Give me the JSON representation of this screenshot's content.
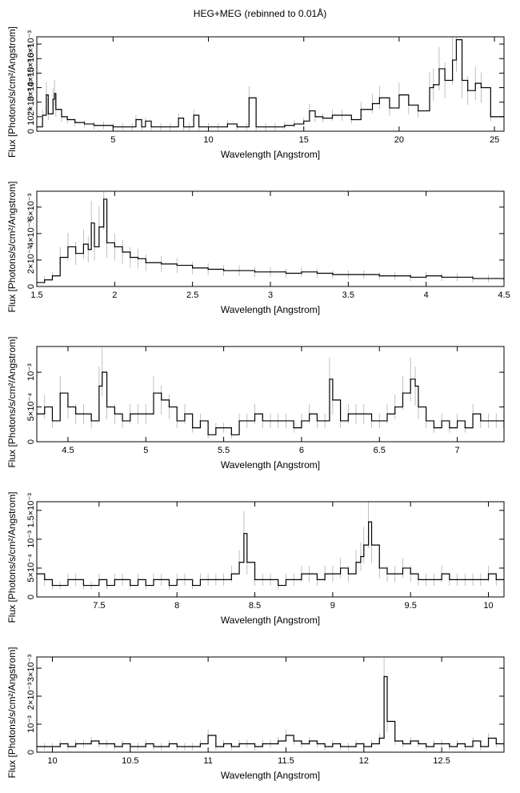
{
  "title": "HEG+MEG (rebinned to 0.01Å)",
  "colors": {
    "line": "#000000",
    "error_bar": "#b0b0b0",
    "frame": "#000000"
  },
  "chart_data": [
    {
      "type": "line",
      "xlabel": "Wavelength [Angstrom]",
      "ylabel": "Flux [Photons/s/cm²/Angstrom]",
      "xlim": [
        1.0,
        25.5
      ],
      "ylim": [
        0,
        0.0065
      ],
      "xticks": [
        5,
        10,
        15,
        20,
        25
      ],
      "xtick_labels": [
        "5",
        "10",
        "15",
        "20",
        "25"
      ],
      "yticks": [
        0,
        0.001,
        0.002,
        0.003,
        0.004,
        0.005,
        0.006
      ],
      "ytick_labels": [
        "0",
        "10⁻³",
        "2×10⁻³",
        "3×10⁻³",
        "4×10⁻³",
        "5×10⁻³",
        "6×10⁻³"
      ],
      "series": [
        {
          "x": [
            1.0,
            1.3,
            1.5,
            1.6,
            1.85,
            1.93,
            2.0,
            2.3,
            2.6,
            3.0,
            3.5,
            4.0,
            4.5,
            5.0,
            5.5,
            6.0,
            6.2,
            6.5,
            6.7,
            7.0,
            7.5,
            8.0,
            8.43,
            8.7,
            9.0,
            9.23,
            9.5,
            10.0,
            10.5,
            11.0,
            11.5,
            12.0,
            12.13,
            12.5,
            13.0,
            13.5,
            14.0,
            14.5,
            15.0,
            15.3,
            15.6,
            16.0,
            16.5,
            17.0,
            17.5,
            18.0,
            18.6,
            18.97,
            19.5,
            20.0,
            20.5,
            21.0,
            21.6,
            21.8,
            22.1,
            22.4,
            22.8,
            23.0,
            23.3,
            23.6,
            24.0,
            24.3,
            24.8,
            25.5
          ],
          "y": [
            0.0003,
            0.0011,
            0.0025,
            0.0012,
            0.0022,
            0.0026,
            0.0015,
            0.001,
            0.0008,
            0.0006,
            0.0005,
            0.0004,
            0.0004,
            0.0003,
            0.0003,
            0.0003,
            0.0008,
            0.0003,
            0.0007,
            0.0003,
            0.0003,
            0.0003,
            0.0009,
            0.0003,
            0.0003,
            0.0011,
            0.0003,
            0.0003,
            0.0003,
            0.0005,
            0.0003,
            0.0003,
            0.0023,
            0.0003,
            0.0003,
            0.0003,
            0.0004,
            0.0005,
            0.0007,
            0.0014,
            0.001,
            0.0009,
            0.0011,
            0.0011,
            0.0008,
            0.0015,
            0.0019,
            0.0023,
            0.0016,
            0.0025,
            0.0018,
            0.0014,
            0.003,
            0.0032,
            0.0043,
            0.0035,
            0.0049,
            0.0063,
            0.0035,
            0.0028,
            0.0033,
            0.003,
            0.001,
            0.001
          ]
        }
      ]
    },
    {
      "type": "line",
      "xlabel": "Wavelength [Angstrom]",
      "ylabel": "Flux [Photons/s/cm²/Angstrom]",
      "xlim": [
        1.5,
        4.5
      ],
      "ylim": [
        0,
        0.0072
      ],
      "xticks": [
        1.5,
        2,
        2.5,
        3,
        3.5,
        4,
        4.5
      ],
      "xtick_labels": [
        "1.5",
        "2",
        "2.5",
        "3",
        "3.5",
        "4",
        "4.5"
      ],
      "yticks": [
        0,
        0.002,
        0.004,
        0.006
      ],
      "ytick_labels": [
        "0",
        "2×10⁻³",
        "4×10⁻³",
        "6×10⁻³"
      ],
      "series": [
        {
          "x": [
            1.5,
            1.55,
            1.6,
            1.65,
            1.7,
            1.75,
            1.8,
            1.83,
            1.85,
            1.87,
            1.9,
            1.93,
            1.95,
            2.0,
            2.05,
            2.1,
            2.15,
            2.2,
            2.3,
            2.4,
            2.5,
            2.6,
            2.7,
            2.8,
            2.9,
            3.0,
            3.1,
            3.2,
            3.3,
            3.4,
            3.5,
            3.6,
            3.7,
            3.8,
            3.9,
            4.0,
            4.1,
            4.2,
            4.3,
            4.4,
            4.5
          ],
          "y": [
            0.0003,
            0.0005,
            0.0008,
            0.0022,
            0.003,
            0.0025,
            0.0032,
            0.0028,
            0.0048,
            0.003,
            0.0045,
            0.0066,
            0.0033,
            0.003,
            0.0026,
            0.0022,
            0.0021,
            0.0018,
            0.0017,
            0.0016,
            0.0014,
            0.0013,
            0.0012,
            0.0012,
            0.0011,
            0.0011,
            0.001,
            0.0011,
            0.001,
            0.0009,
            0.0009,
            0.0009,
            0.0008,
            0.0008,
            0.0007,
            0.0008,
            0.0007,
            0.0007,
            0.0006,
            0.0006,
            0.0005
          ]
        }
      ]
    },
    {
      "type": "line",
      "xlabel": "Wavelength [Angstrom]",
      "ylabel": "Flux [Photons/s/cm²/Angstrom]",
      "xlim": [
        4.3,
        7.3
      ],
      "ylim": [
        0,
        0.00137
      ],
      "xticks": [
        4.5,
        5,
        5.5,
        6,
        6.5,
        7
      ],
      "xtick_labels": [
        "4.5",
        "5",
        "5.5",
        "6",
        "6.5",
        "7"
      ],
      "yticks": [
        0,
        0.0005,
        0.001
      ],
      "ytick_labels": [
        "0",
        "5×10⁻⁴",
        "10⁻³"
      ],
      "series": [
        {
          "x": [
            4.3,
            4.35,
            4.4,
            4.45,
            4.5,
            4.55,
            4.6,
            4.65,
            4.7,
            4.72,
            4.75,
            4.8,
            4.85,
            4.9,
            4.95,
            5.0,
            5.05,
            5.1,
            5.15,
            5.2,
            5.25,
            5.3,
            5.35,
            5.4,
            5.45,
            5.5,
            5.55,
            5.6,
            5.65,
            5.7,
            5.75,
            5.8,
            5.85,
            5.9,
            5.95,
            6.0,
            6.05,
            6.1,
            6.15,
            6.18,
            6.2,
            6.25,
            6.3,
            6.35,
            6.4,
            6.45,
            6.5,
            6.55,
            6.6,
            6.65,
            6.7,
            6.73,
            6.75,
            6.8,
            6.85,
            6.9,
            6.95,
            7.0,
            7.05,
            7.1,
            7.15,
            7.2,
            7.25,
            7.3
          ],
          "y": [
            0.0004,
            0.0005,
            0.0003,
            0.0007,
            0.0005,
            0.0004,
            0.0004,
            0.0003,
            0.0008,
            0.001,
            0.0005,
            0.0004,
            0.0003,
            0.0004,
            0.0004,
            0.0004,
            0.0007,
            0.0006,
            0.0005,
            0.0003,
            0.0004,
            0.0002,
            0.0003,
            0.0001,
            0.0002,
            0.0002,
            0.0001,
            0.0003,
            0.0003,
            0.0004,
            0.0003,
            0.0003,
            0.0003,
            0.0003,
            0.0002,
            0.0003,
            0.0004,
            0.0003,
            0.0003,
            0.0009,
            0.0006,
            0.0003,
            0.0004,
            0.0004,
            0.0004,
            0.0003,
            0.0003,
            0.0004,
            0.0005,
            0.0007,
            0.0009,
            0.0008,
            0.0005,
            0.0003,
            0.0002,
            0.0003,
            0.0002,
            0.0003,
            0.0002,
            0.0004,
            0.0003,
            0.0003,
            0.0003,
            0.0002
          ]
        }
      ]
    },
    {
      "type": "line",
      "xlabel": "Wavelength [Angstrom]",
      "ylabel": "Flux [Photons/s/cm²/Angstrom]",
      "xlim": [
        7.1,
        10.1
      ],
      "ylim": [
        0,
        0.00165
      ],
      "xticks": [
        7.5,
        8,
        8.5,
        9,
        9.5,
        10
      ],
      "xtick_labels": [
        "7.5",
        "8",
        "8.5",
        "9",
        "9.5",
        "10"
      ],
      "yticks": [
        0,
        0.0005,
        0.001,
        0.0015
      ],
      "ytick_labels": [
        "0",
        "5×10⁻⁴",
        "10⁻³",
        "1.5×10⁻³"
      ],
      "series": [
        {
          "x": [
            7.1,
            7.15,
            7.2,
            7.25,
            7.3,
            7.35,
            7.4,
            7.45,
            7.5,
            7.55,
            7.6,
            7.65,
            7.7,
            7.75,
            7.8,
            7.85,
            7.9,
            7.95,
            8.0,
            8.05,
            8.1,
            8.15,
            8.2,
            8.25,
            8.3,
            8.35,
            8.4,
            8.43,
            8.45,
            8.5,
            8.55,
            8.6,
            8.65,
            8.7,
            8.75,
            8.8,
            8.85,
            8.9,
            8.95,
            9.0,
            9.05,
            9.1,
            9.15,
            9.18,
            9.2,
            9.23,
            9.25,
            9.3,
            9.35,
            9.4,
            9.45,
            9.5,
            9.55,
            9.6,
            9.65,
            9.7,
            9.75,
            9.8,
            9.85,
            9.9,
            9.95,
            10.0,
            10.05,
            10.1
          ],
          "y": [
            0.0004,
            0.0003,
            0.0002,
            0.0002,
            0.0003,
            0.0003,
            0.0002,
            0.0002,
            0.0003,
            0.0002,
            0.0003,
            0.0003,
            0.0002,
            0.0003,
            0.0002,
            0.0003,
            0.0003,
            0.0002,
            0.0003,
            0.0003,
            0.0002,
            0.0003,
            0.0003,
            0.0003,
            0.0003,
            0.0004,
            0.0006,
            0.0011,
            0.0006,
            0.0003,
            0.0003,
            0.0003,
            0.0002,
            0.0003,
            0.0003,
            0.0004,
            0.0004,
            0.0003,
            0.0004,
            0.0004,
            0.0005,
            0.0004,
            0.0006,
            0.0007,
            0.0009,
            0.0013,
            0.0009,
            0.0005,
            0.0004,
            0.0004,
            0.0005,
            0.0004,
            0.0003,
            0.0003,
            0.0003,
            0.0004,
            0.0003,
            0.0003,
            0.0003,
            0.0003,
            0.0003,
            0.0004,
            0.0003,
            0.0003
          ]
        }
      ]
    },
    {
      "type": "line",
      "xlabel": "Wavelength [Angstrom]",
      "ylabel": "Flux [Photons/s/cm²/Angstrom]",
      "xlim": [
        9.9,
        12.9
      ],
      "ylim": [
        0,
        0.0034
      ],
      "xticks": [
        10,
        10.5,
        11,
        11.5,
        12,
        12.5
      ],
      "xtick_labels": [
        "10",
        "10.5",
        "11",
        "11.5",
        "12",
        "12.5"
      ],
      "yticks": [
        0,
        0.001,
        0.002,
        0.003
      ],
      "ytick_labels": [
        "0",
        "10⁻³",
        "2×10⁻³",
        "3×10⁻³"
      ],
      "series": [
        {
          "x": [
            9.9,
            9.95,
            10.0,
            10.05,
            10.1,
            10.15,
            10.2,
            10.25,
            10.3,
            10.35,
            10.4,
            10.45,
            10.5,
            10.55,
            10.6,
            10.65,
            10.7,
            10.75,
            10.8,
            10.85,
            10.9,
            10.95,
            11.0,
            11.05,
            11.1,
            11.15,
            11.2,
            11.25,
            11.3,
            11.35,
            11.4,
            11.45,
            11.5,
            11.55,
            11.6,
            11.65,
            11.7,
            11.75,
            11.8,
            11.85,
            11.9,
            11.95,
            12.0,
            12.05,
            12.1,
            12.13,
            12.15,
            12.2,
            12.25,
            12.3,
            12.35,
            12.4,
            12.45,
            12.5,
            12.55,
            12.6,
            12.65,
            12.7,
            12.75,
            12.8,
            12.85,
            12.9
          ],
          "y": [
            0.0002,
            0.0002,
            0.0002,
            0.0003,
            0.0002,
            0.0003,
            0.0003,
            0.0004,
            0.0003,
            0.0003,
            0.0002,
            0.0003,
            0.0002,
            0.0002,
            0.0003,
            0.0002,
            0.0002,
            0.0003,
            0.0002,
            0.0002,
            0.0002,
            0.0003,
            0.0006,
            0.0002,
            0.0003,
            0.0002,
            0.0003,
            0.0003,
            0.0002,
            0.0003,
            0.0003,
            0.0004,
            0.0006,
            0.0004,
            0.0003,
            0.0004,
            0.0003,
            0.0002,
            0.0003,
            0.0002,
            0.0002,
            0.0003,
            0.0002,
            0.0003,
            0.0005,
            0.0027,
            0.0011,
            0.0004,
            0.0003,
            0.0004,
            0.0003,
            0.0002,
            0.0003,
            0.0003,
            0.0002,
            0.0003,
            0.0002,
            0.0004,
            0.0002,
            0.0005,
            0.0003,
            0.0002
          ]
        }
      ]
    }
  ]
}
